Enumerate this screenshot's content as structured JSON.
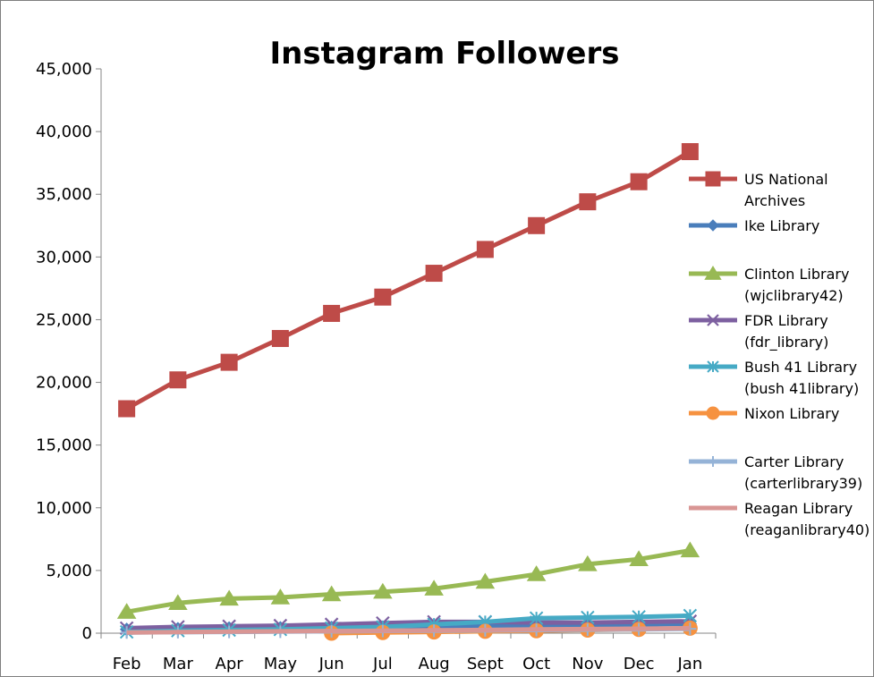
{
  "chart_data": {
    "type": "line",
    "title": "Instagram Followers",
    "xlabel": "",
    "ylabel": "",
    "categories": [
      "Feb",
      "Mar",
      "Apr",
      "May",
      "Jun",
      "Jul",
      "Aug",
      "Sept",
      "Oct",
      "Nov",
      "Dec",
      "Jan"
    ],
    "ylim": [
      0,
      45000
    ],
    "yticks": [
      0,
      5000,
      10000,
      15000,
      20000,
      25000,
      30000,
      35000,
      40000,
      45000
    ],
    "ytick_labels": [
      "0",
      "5,000",
      "10,000",
      "15,000",
      "20,000",
      "25,000",
      "30,000",
      "35,000",
      "40,000",
      "45,000"
    ],
    "grid": false,
    "legend_position": "right",
    "series": [
      {
        "name": "US National Archives",
        "legend_lines": [
          "US National",
          "Archives"
        ],
        "color": "#be4b48",
        "marker": "square",
        "values": [
          17900,
          20200,
          21600,
          23500,
          25500,
          26800,
          28700,
          30600,
          32500,
          34400,
          36000,
          38400
        ]
      },
      {
        "name": "Ike Library",
        "legend_lines": [
          "Ike Library"
        ],
        "color": "#4a7ebb",
        "marker": "diamond",
        "values": [
          300,
          350,
          400,
          420,
          450,
          480,
          520,
          560,
          600,
          650,
          700,
          750
        ]
      },
      {
        "name": "Clinton Library (wjclibrary42)",
        "legend_lines": [
          "Clinton Library",
          "(wjclibrary42)"
        ],
        "color": "#98b954",
        "marker": "triangle",
        "values": [
          1700,
          2400,
          2750,
          2850,
          3100,
          3300,
          3550,
          4100,
          4700,
          5500,
          5900,
          6600
        ]
      },
      {
        "name": "FDR Library (fdr_library)",
        "legend_lines": [
          "FDR Library",
          "(fdr_library)"
        ],
        "color": "#7d60a0",
        "marker": "x",
        "values": [
          400,
          500,
          550,
          600,
          700,
          800,
          900,
          900,
          850,
          850,
          900,
          950
        ]
      },
      {
        "name": "Bush 41 Library (bush 41library)",
        "legend_lines": [
          "Bush 41 Library",
          "(bush 41library)"
        ],
        "color": "#46aac5",
        "marker": "star",
        "values": [
          100,
          200,
          250,
          300,
          400,
          500,
          700,
          900,
          1200,
          1250,
          1300,
          1400
        ]
      },
      {
        "name": "Nixon Library",
        "legend_lines": [
          "Nixon Library"
        ],
        "color": "#f69240",
        "marker": "circle",
        "values": [
          null,
          null,
          null,
          null,
          0,
          50,
          100,
          150,
          200,
          250,
          300,
          400
        ]
      },
      {
        "name": "Carter Library (carterlibrary39)",
        "legend_lines": [
          "Carter Library",
          "(carterlibrary39)"
        ],
        "color": "#95b3d7",
        "marker": "plus",
        "values": [
          50,
          80,
          100,
          120,
          150,
          180,
          200,
          220,
          250,
          280,
          300,
          350
        ]
      },
      {
        "name": "Reagan Library (reaganlibrary40)",
        "legend_lines": [
          "Reagan Library",
          "(reaganlibrary40)"
        ],
        "color": "#d99694",
        "marker": "none",
        "values": [
          60,
          90,
          120,
          150,
          180,
          200,
          230,
          260,
          300,
          330,
          360,
          400
        ]
      }
    ]
  }
}
